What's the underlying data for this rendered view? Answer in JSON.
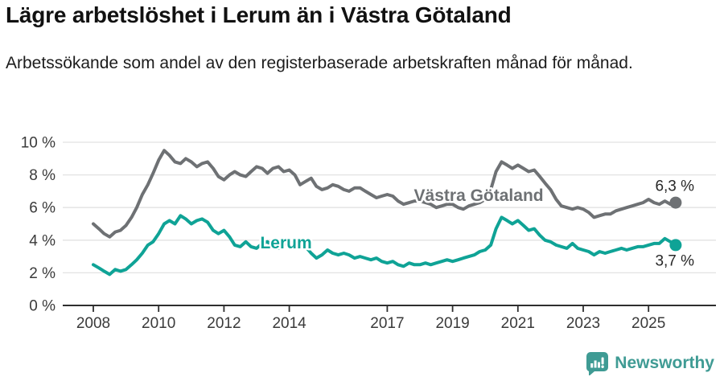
{
  "header": {
    "title": "Lägre arbetslöshet i Lerum än i Västra Götaland",
    "subtitle": "Arbetssökande som andel av den registerbaserade arbetskraften månad för månad."
  },
  "footer": {
    "brand": "Newsworthy",
    "brand_color": "#3f9b94",
    "logo_icon": "newsworthy-speech-bubble-bar-chart-icon"
  },
  "chart_data": {
    "type": "line",
    "title": "Lägre arbetslöshet i Lerum än i Västra Götaland",
    "xlabel": "",
    "ylabel": "Arbetssökande som andel av den registerbaserade arbetskraften",
    "x_axis": {
      "ticks": [
        2008,
        2010,
        2012,
        2014,
        2017,
        2019,
        2021,
        2023,
        2025
      ],
      "tick_labels": [
        "2008",
        "2010",
        "2012",
        "2014",
        "2017",
        "2019",
        "2021",
        "2023",
        "2025"
      ],
      "range": [
        2007.1,
        2027.1
      ]
    },
    "y_axis": {
      "ticks": [
        0,
        2,
        4,
        6,
        8,
        10
      ],
      "tick_labels": [
        "0 %",
        "2 %",
        "4 %",
        "6 %",
        "8 %",
        "10 %"
      ],
      "range": [
        0,
        10
      ],
      "grid": true
    },
    "colors": {
      "grid": "#e2e2e2",
      "axis": "#2e2e2e",
      "tick_text": "#3a3a3a",
      "annotation_text": "#272727"
    },
    "legend_position": "inline-labels",
    "series": [
      {
        "name": "Västra Götaland",
        "color": "#6e7174",
        "label_anchor": {
          "year": 2019.8,
          "value": 6.75
        },
        "end_label": {
          "text": "6,3 %",
          "year": 2026.4,
          "value": 7.34
        },
        "end_value": 6.3,
        "points": [
          [
            2008.0,
            5.0
          ],
          [
            2008.17,
            4.7
          ],
          [
            2008.33,
            4.4
          ],
          [
            2008.5,
            4.2
          ],
          [
            2008.67,
            4.5
          ],
          [
            2008.83,
            4.6
          ],
          [
            2009.0,
            4.9
          ],
          [
            2009.17,
            5.4
          ],
          [
            2009.33,
            6.0
          ],
          [
            2009.5,
            6.8
          ],
          [
            2009.67,
            7.4
          ],
          [
            2009.83,
            8.1
          ],
          [
            2010.0,
            8.9
          ],
          [
            2010.17,
            9.5
          ],
          [
            2010.33,
            9.2
          ],
          [
            2010.5,
            8.8
          ],
          [
            2010.67,
            8.7
          ],
          [
            2010.83,
            9.0
          ],
          [
            2011.0,
            8.8
          ],
          [
            2011.17,
            8.5
          ],
          [
            2011.33,
            8.7
          ],
          [
            2011.5,
            8.8
          ],
          [
            2011.67,
            8.4
          ],
          [
            2011.83,
            7.9
          ],
          [
            2012.0,
            7.7
          ],
          [
            2012.17,
            8.0
          ],
          [
            2012.33,
            8.2
          ],
          [
            2012.5,
            8.0
          ],
          [
            2012.67,
            7.9
          ],
          [
            2012.83,
            8.2
          ],
          [
            2013.0,
            8.5
          ],
          [
            2013.17,
            8.4
          ],
          [
            2013.33,
            8.1
          ],
          [
            2013.5,
            8.4
          ],
          [
            2013.67,
            8.5
          ],
          [
            2013.83,
            8.2
          ],
          [
            2014.0,
            8.3
          ],
          [
            2014.17,
            8.0
          ],
          [
            2014.33,
            7.4
          ],
          [
            2014.5,
            7.6
          ],
          [
            2014.67,
            7.8
          ],
          [
            2014.83,
            7.3
          ],
          [
            2015.0,
            7.1
          ],
          [
            2015.17,
            7.2
          ],
          [
            2015.33,
            7.4
          ],
          [
            2015.5,
            7.3
          ],
          [
            2015.67,
            7.1
          ],
          [
            2015.83,
            7.0
          ],
          [
            2016.0,
            7.2
          ],
          [
            2016.17,
            7.2
          ],
          [
            2016.33,
            7.0
          ],
          [
            2016.5,
            6.8
          ],
          [
            2016.67,
            6.6
          ],
          [
            2016.83,
            6.7
          ],
          [
            2017.0,
            6.8
          ],
          [
            2017.17,
            6.7
          ],
          [
            2017.33,
            6.4
          ],
          [
            2017.5,
            6.2
          ],
          [
            2017.67,
            6.3
          ],
          [
            2017.83,
            6.4
          ],
          [
            2018.0,
            6.4
          ],
          [
            2018.17,
            6.3
          ],
          [
            2018.33,
            6.2
          ],
          [
            2018.5,
            6.0
          ],
          [
            2018.67,
            6.1
          ],
          [
            2018.83,
            6.2
          ],
          [
            2019.0,
            6.2
          ],
          [
            2019.17,
            6.0
          ],
          [
            2019.33,
            5.9
          ],
          [
            2019.5,
            6.1
          ],
          [
            2019.67,
            6.2
          ],
          [
            2019.83,
            6.3
          ],
          [
            2020.0,
            6.5
          ],
          [
            2020.17,
            7.1
          ],
          [
            2020.33,
            8.2
          ],
          [
            2020.5,
            8.8
          ],
          [
            2020.67,
            8.6
          ],
          [
            2020.83,
            8.4
          ],
          [
            2021.0,
            8.6
          ],
          [
            2021.17,
            8.4
          ],
          [
            2021.33,
            8.2
          ],
          [
            2021.5,
            8.3
          ],
          [
            2021.67,
            7.9
          ],
          [
            2021.83,
            7.5
          ],
          [
            2022.0,
            7.1
          ],
          [
            2022.17,
            6.5
          ],
          [
            2022.33,
            6.1
          ],
          [
            2022.5,
            6.0
          ],
          [
            2022.67,
            5.9
          ],
          [
            2022.83,
            6.0
          ],
          [
            2023.0,
            5.9
          ],
          [
            2023.17,
            5.7
          ],
          [
            2023.33,
            5.4
          ],
          [
            2023.5,
            5.5
          ],
          [
            2023.67,
            5.6
          ],
          [
            2023.83,
            5.6
          ],
          [
            2024.0,
            5.8
          ],
          [
            2024.17,
            5.9
          ],
          [
            2024.33,
            6.0
          ],
          [
            2024.5,
            6.1
          ],
          [
            2024.67,
            6.2
          ],
          [
            2024.83,
            6.3
          ],
          [
            2025.0,
            6.5
          ],
          [
            2025.17,
            6.3
          ],
          [
            2025.33,
            6.2
          ],
          [
            2025.5,
            6.4
          ],
          [
            2025.67,
            6.2
          ],
          [
            2025.83,
            6.3
          ]
        ]
      },
      {
        "name": "Lerum",
        "color": "#0fa396",
        "label_anchor": {
          "year": 2013.9,
          "value": 3.85
        },
        "end_label": {
          "text": "3,7 %",
          "year": 2026.4,
          "value": 2.76
        },
        "end_value": 3.7,
        "points": [
          [
            2008.0,
            2.5
          ],
          [
            2008.17,
            2.3
          ],
          [
            2008.33,
            2.1
          ],
          [
            2008.5,
            1.9
          ],
          [
            2008.67,
            2.2
          ],
          [
            2008.83,
            2.1
          ],
          [
            2009.0,
            2.2
          ],
          [
            2009.17,
            2.5
          ],
          [
            2009.33,
            2.8
          ],
          [
            2009.5,
            3.2
          ],
          [
            2009.67,
            3.7
          ],
          [
            2009.83,
            3.9
          ],
          [
            2010.0,
            4.4
          ],
          [
            2010.17,
            5.0
          ],
          [
            2010.33,
            5.2
          ],
          [
            2010.5,
            5.0
          ],
          [
            2010.67,
            5.5
          ],
          [
            2010.83,
            5.3
          ],
          [
            2011.0,
            5.0
          ],
          [
            2011.17,
            5.2
          ],
          [
            2011.33,
            5.3
          ],
          [
            2011.5,
            5.1
          ],
          [
            2011.67,
            4.6
          ],
          [
            2011.83,
            4.4
          ],
          [
            2012.0,
            4.6
          ],
          [
            2012.17,
            4.2
          ],
          [
            2012.33,
            3.7
          ],
          [
            2012.5,
            3.6
          ],
          [
            2012.67,
            3.9
          ],
          [
            2012.83,
            3.6
          ],
          [
            2013.0,
            3.5
          ],
          [
            2013.17,
            3.8
          ],
          [
            2013.33,
            3.9
          ],
          [
            2013.5,
            3.6
          ],
          [
            2013.67,
            3.5
          ],
          [
            2013.83,
            3.8
          ],
          [
            2014.0,
            3.7
          ],
          [
            2014.17,
            3.8
          ],
          [
            2014.33,
            3.7
          ],
          [
            2014.5,
            3.6
          ],
          [
            2014.67,
            3.2
          ],
          [
            2014.83,
            2.9
          ],
          [
            2015.0,
            3.1
          ],
          [
            2015.17,
            3.4
          ],
          [
            2015.33,
            3.2
          ],
          [
            2015.5,
            3.1
          ],
          [
            2015.67,
            3.2
          ],
          [
            2015.83,
            3.1
          ],
          [
            2016.0,
            2.9
          ],
          [
            2016.17,
            3.0
          ],
          [
            2016.33,
            2.9
          ],
          [
            2016.5,
            2.8
          ],
          [
            2016.67,
            2.9
          ],
          [
            2016.83,
            2.7
          ],
          [
            2017.0,
            2.6
          ],
          [
            2017.17,
            2.7
          ],
          [
            2017.33,
            2.5
          ],
          [
            2017.5,
            2.4
          ],
          [
            2017.67,
            2.6
          ],
          [
            2017.83,
            2.5
          ],
          [
            2018.0,
            2.5
          ],
          [
            2018.17,
            2.6
          ],
          [
            2018.33,
            2.5
          ],
          [
            2018.5,
            2.6
          ],
          [
            2018.67,
            2.7
          ],
          [
            2018.83,
            2.8
          ],
          [
            2019.0,
            2.7
          ],
          [
            2019.17,
            2.8
          ],
          [
            2019.33,
            2.9
          ],
          [
            2019.5,
            3.0
          ],
          [
            2019.67,
            3.1
          ],
          [
            2019.83,
            3.3
          ],
          [
            2020.0,
            3.4
          ],
          [
            2020.17,
            3.7
          ],
          [
            2020.33,
            4.7
          ],
          [
            2020.5,
            5.4
          ],
          [
            2020.67,
            5.2
          ],
          [
            2020.83,
            5.0
          ],
          [
            2021.0,
            5.2
          ],
          [
            2021.17,
            4.9
          ],
          [
            2021.33,
            4.6
          ],
          [
            2021.5,
            4.7
          ],
          [
            2021.67,
            4.3
          ],
          [
            2021.83,
            4.0
          ],
          [
            2022.0,
            3.9
          ],
          [
            2022.17,
            3.7
          ],
          [
            2022.33,
            3.6
          ],
          [
            2022.5,
            3.5
          ],
          [
            2022.67,
            3.8
          ],
          [
            2022.83,
            3.5
          ],
          [
            2023.0,
            3.4
          ],
          [
            2023.17,
            3.3
          ],
          [
            2023.33,
            3.1
          ],
          [
            2023.5,
            3.3
          ],
          [
            2023.67,
            3.2
          ],
          [
            2023.83,
            3.3
          ],
          [
            2024.0,
            3.4
          ],
          [
            2024.17,
            3.5
          ],
          [
            2024.33,
            3.4
          ],
          [
            2024.5,
            3.5
          ],
          [
            2024.67,
            3.6
          ],
          [
            2024.83,
            3.6
          ],
          [
            2025.0,
            3.7
          ],
          [
            2025.17,
            3.8
          ],
          [
            2025.33,
            3.8
          ],
          [
            2025.5,
            4.1
          ],
          [
            2025.67,
            3.9
          ],
          [
            2025.83,
            3.7
          ]
        ]
      }
    ]
  }
}
